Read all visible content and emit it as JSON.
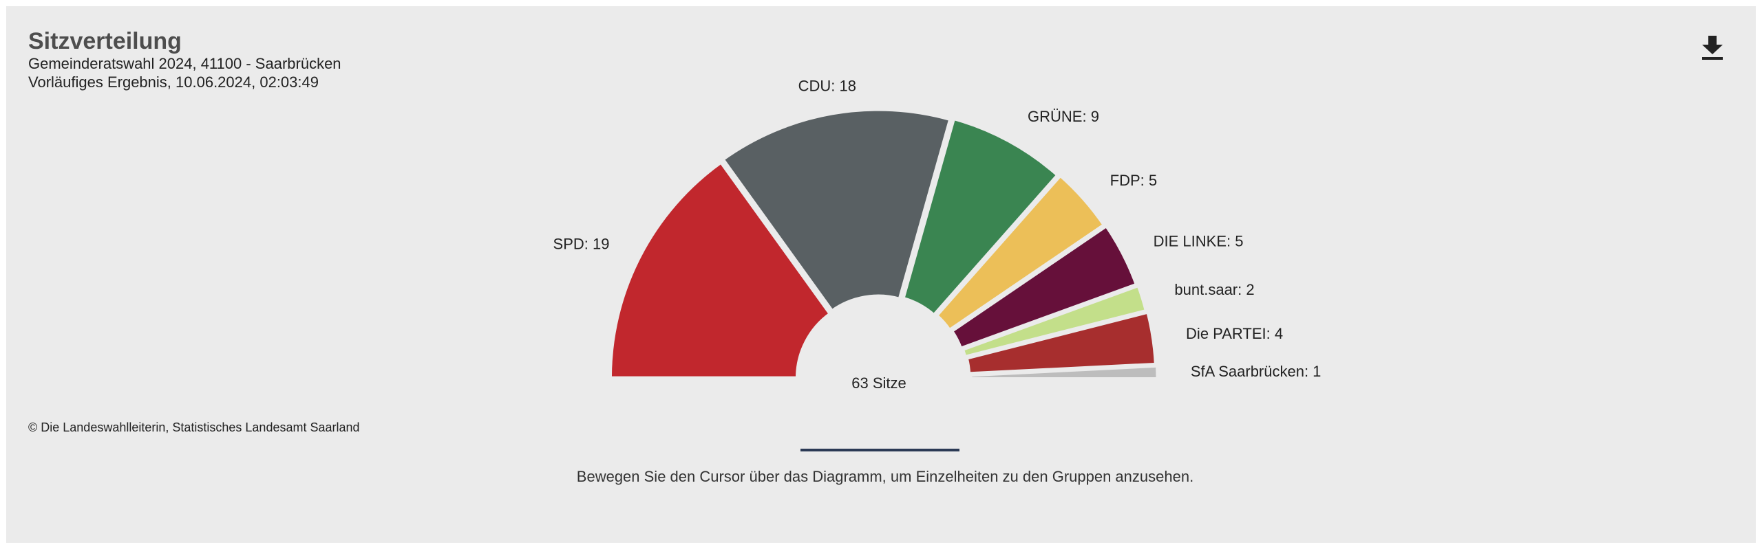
{
  "header": {
    "title": "Sitzverteilung",
    "subtitle": "Gemeinderatswahl 2024, 41100 - Saarbrücken",
    "status": "Vorläufiges Ergebnis, 10.06.2024, 02:03:49"
  },
  "toolbar": {
    "download_icon": "download-icon"
  },
  "footer": {
    "credit": "© Die Landeswahlleiterin, Statistisches Landesamt Saarland",
    "hint": "Bewegen Sie den Cursor über das Diagramm, um Einzelheiten zu den Gruppen anzusehen."
  },
  "chart_data": {
    "type": "pie",
    "subtype": "semicircle-parliament",
    "center_label": "63 Sitze",
    "total": 63,
    "categories": [
      "SPD",
      "CDU",
      "GRÜNE",
      "FDP",
      "DIE LINKE",
      "bunt.saar",
      "Die PARTEI",
      "SfA Saarbrücken"
    ],
    "values": [
      19,
      18,
      9,
      5,
      5,
      2,
      4,
      1
    ],
    "labels": [
      "SPD: 19",
      "CDU: 18",
      "GRÜNE: 9",
      "FDP: 5",
      "DIE LINKE: 5",
      "bunt.saar: 2",
      "Die PARTEI: 4",
      "SfA Saarbrücken: 1"
    ],
    "colors": [
      "#c1272d",
      "#596063",
      "#3a8551",
      "#ecbf58",
      "#66103a",
      "#c3df8a",
      "#a72e2e",
      "#bdbdbd"
    ]
  }
}
